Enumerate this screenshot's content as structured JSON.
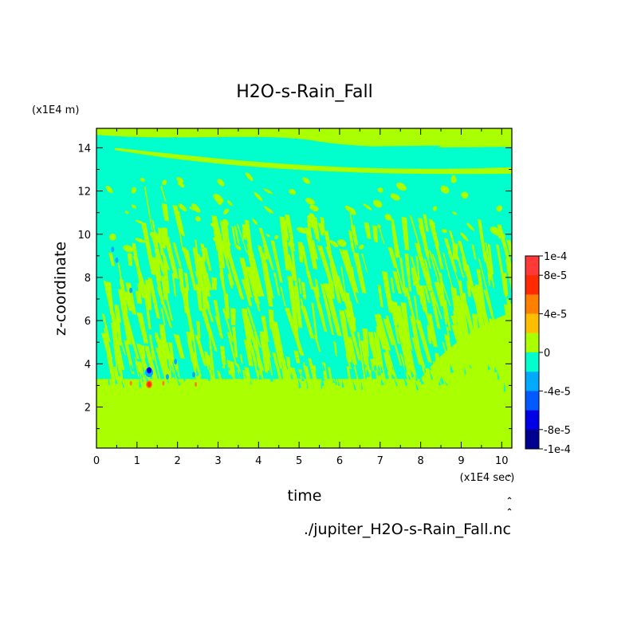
{
  "chart_data": {
    "type": "heatmap",
    "title": "H2O-s-Rain_Fall",
    "xlabel": "time",
    "ylabel": "z-coordinate",
    "x_unit": "(x1E4 sec)",
    "y_unit": "(x1E4 m)",
    "footer": "./jupiter_H2O-s-Rain_Fall.nc",
    "xlim": [
      0,
      10.25
    ],
    "ylim": [
      0.1,
      14.9
    ],
    "x_ticks": [
      "0",
      "1",
      "2",
      "3",
      "4",
      "5",
      "6",
      "7",
      "8",
      "9",
      "10"
    ],
    "y_ticks": [
      "2",
      "4",
      "6",
      "8",
      "10",
      "12",
      "14"
    ],
    "colorbar": {
      "range": [
        -0.0001,
        0.0001
      ],
      "labels": [
        "1e-4",
        "8e-5",
        "4e-5",
        "0",
        "-4e-5",
        "-8e-5",
        "-1e-4"
      ],
      "bins": [
        "#ff3838",
        "#ff2a00",
        "#ff7f00",
        "#ffbf00",
        "#aaff00",
        "#00ffcc",
        "#00aaff",
        "#005aff",
        "#0000e6",
        "#000090"
      ]
    },
    "levels": {
      "zero": "#aaff00",
      "slightly_negative": "#00ffcc",
      "negative": "#00aaff",
      "strong_negative": "#0000e6",
      "positive": "#ff7f00",
      "strong_positive": "#ff2a00"
    },
    "field_description": {
      "lower_layer_top": 3.3,
      "cloud_top": 14.0,
      "extreme_event_time": 1.3,
      "extreme_event_height": 3.3
    }
  }
}
